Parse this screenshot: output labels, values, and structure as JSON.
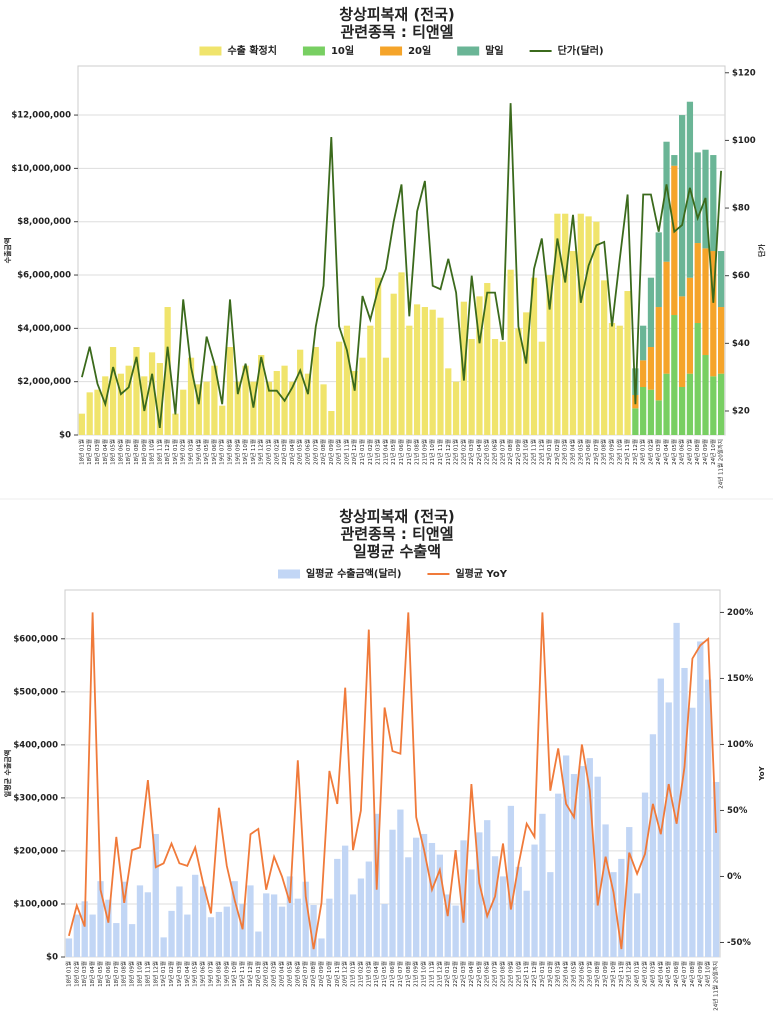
{
  "chart_data": [
    {
      "type": "bar",
      "stacked": true,
      "title": [
        "창상피복재 (전국)",
        "관련종목 : 티앤엘"
      ],
      "y_label": "수출금액",
      "y2_label": "단가",
      "categories": [
        "18년 01월",
        "18년 02월",
        "18년 03월",
        "18년 04월",
        "18년 05월",
        "18년 06월",
        "18년 07월",
        "18년 08월",
        "18년 09월",
        "18년 10월",
        "18년 11월",
        "18년 12월",
        "19년 01월",
        "19년 02월",
        "19년 03월",
        "19년 04월",
        "19년 05월",
        "19년 06월",
        "19년 07월",
        "19년 08월",
        "19년 09월",
        "19년 10월",
        "19년 11월",
        "19년 12월",
        "20년 01월",
        "20년 02월",
        "20년 03월",
        "20년 04월",
        "20년 05월",
        "20년 06월",
        "20년 07월",
        "20년 08월",
        "20년 09월",
        "20년 10월",
        "20년 11월",
        "20년 12월",
        "21년 01월",
        "21년 02월",
        "21년 03월",
        "21년 04월",
        "21년 05월",
        "21년 06월",
        "21년 07월",
        "21년 08월",
        "21년 09월",
        "21년 10월",
        "21년 11월",
        "21년 12월",
        "22년 01월",
        "22년 02월",
        "22년 03월",
        "22년 04월",
        "22년 05월",
        "22년 06월",
        "22년 07월",
        "22년 08월",
        "22년 09월",
        "22년 10월",
        "22년 11월",
        "22년 12월",
        "23년 01월",
        "23년 02월",
        "23년 03월",
        "23년 04월",
        "23년 05월",
        "23년 06월",
        "23년 07월",
        "23년 08월",
        "23년 09월",
        "23년 10월",
        "23년 11월",
        "23년 12월",
        "24년 01월",
        "24년 02월",
        "24년 03월",
        "24년 04월",
        "24년 05월",
        "24년 06월",
        "24년 07월",
        "24년 08월",
        "24년 09월",
        "24년 10월",
        "24년 11월 20일까지"
      ],
      "series": [
        {
          "name": "수출 확정치",
          "color": "#f0e46c",
          "type": "bar",
          "values": [
            800000,
            1600000,
            1700000,
            2200000,
            3300000,
            2300000,
            2600000,
            3300000,
            2200000,
            3100000,
            2700000,
            4800000,
            800000,
            1700000,
            2900000,
            1900000,
            2000000,
            2600000,
            1100000,
            3300000,
            2000000,
            2600000,
            2000000,
            3000000,
            2000000,
            2400000,
            2600000,
            2000000,
            3200000,
            2300000,
            3300000,
            1900000,
            900000,
            3500000,
            4100000,
            2400000,
            2900000,
            4100000,
            5900000,
            2900000,
            5300000,
            6100000,
            4100000,
            4900000,
            4800000,
            4700000,
            4400000,
            2500000,
            2000000,
            5000000,
            3600000,
            5200000,
            5700000,
            3600000,
            3500000,
            6200000,
            4000000,
            4600000,
            5900000,
            3500000,
            6000000,
            8300000,
            8300000,
            6900000,
            8300000,
            8200000,
            8000000,
            5800000,
            4200000,
            4100000,
            5400000,
            null,
            null,
            null,
            null,
            null,
            null,
            null,
            null,
            null,
            null,
            null,
            null
          ]
        },
        {
          "name": "10일",
          "color": "#78cf62",
          "type": "bar",
          "values": [
            null,
            null,
            null,
            null,
            null,
            null,
            null,
            null,
            null,
            null,
            null,
            null,
            null,
            null,
            null,
            null,
            null,
            null,
            null,
            null,
            null,
            null,
            null,
            null,
            null,
            null,
            null,
            null,
            null,
            null,
            null,
            null,
            null,
            null,
            null,
            null,
            null,
            null,
            null,
            null,
            null,
            null,
            null,
            null,
            null,
            null,
            null,
            null,
            null,
            null,
            null,
            null,
            null,
            null,
            null,
            null,
            null,
            null,
            null,
            null,
            null,
            null,
            null,
            null,
            null,
            null,
            null,
            null,
            null,
            null,
            null,
            1000000,
            1800000,
            1700000,
            1300000,
            2300000,
            4500000,
            1800000,
            2300000,
            4200000,
            3000000,
            2200000,
            2300000
          ]
        },
        {
          "name": "20일",
          "color": "#f5a42a",
          "type": "bar",
          "values": [
            null,
            null,
            null,
            null,
            null,
            null,
            null,
            null,
            null,
            null,
            null,
            null,
            null,
            null,
            null,
            null,
            null,
            null,
            null,
            null,
            null,
            null,
            null,
            null,
            null,
            null,
            null,
            null,
            null,
            null,
            null,
            null,
            null,
            null,
            null,
            null,
            null,
            null,
            null,
            null,
            null,
            null,
            null,
            null,
            null,
            null,
            null,
            null,
            null,
            null,
            null,
            null,
            null,
            null,
            null,
            null,
            null,
            null,
            null,
            null,
            null,
            null,
            null,
            null,
            null,
            null,
            null,
            null,
            null,
            null,
            null,
            500000,
            1000000,
            1600000,
            3500000,
            4200000,
            5600000,
            3400000,
            3600000,
            3000000,
            4000000,
            4700000,
            2500000
          ]
        },
        {
          "name": "말일",
          "color": "#6ab596",
          "type": "bar",
          "values": [
            null,
            null,
            null,
            null,
            null,
            null,
            null,
            null,
            null,
            null,
            null,
            null,
            null,
            null,
            null,
            null,
            null,
            null,
            null,
            null,
            null,
            null,
            null,
            null,
            null,
            null,
            null,
            null,
            null,
            null,
            null,
            null,
            null,
            null,
            null,
            null,
            null,
            null,
            null,
            null,
            null,
            null,
            null,
            null,
            null,
            null,
            null,
            null,
            null,
            null,
            null,
            null,
            null,
            null,
            null,
            null,
            null,
            null,
            null,
            null,
            null,
            null,
            null,
            null,
            null,
            null,
            null,
            null,
            null,
            null,
            null,
            1000000,
            1300000,
            2600000,
            2800000,
            4500000,
            400000,
            6800000,
            6600000,
            3400000,
            3700000,
            3600000,
            2100000
          ]
        },
        {
          "name": "단가(달러)",
          "color": "#3b6a1c",
          "type": "line",
          "axis": "y2",
          "values": [
            30,
            39,
            28,
            22,
            33,
            25,
            27,
            36,
            20,
            31,
            15,
            39,
            19,
            53,
            33,
            22,
            42,
            34,
            22,
            53,
            25,
            34,
            21,
            36,
            26,
            26,
            23,
            27,
            32,
            25,
            45,
            57,
            101,
            45,
            38,
            26,
            54,
            47,
            56,
            62,
            76,
            87,
            48,
            79,
            88,
            57,
            56,
            65,
            55,
            29,
            60,
            40,
            55,
            55,
            41,
            111,
            45,
            34,
            62,
            71,
            50,
            71,
            58,
            78,
            52,
            63,
            69,
            70,
            45,
            65,
            84,
            22,
            84,
            84,
            73,
            87,
            73,
            75,
            86,
            77,
            83,
            52,
            91
          ]
        }
      ],
      "ylim": [
        0,
        13840000
      ],
      "yticks": [
        {
          "value": 0,
          "label": "$0"
        },
        {
          "value": 2000000,
          "label": "$2,000,000"
        },
        {
          "value": 4000000,
          "label": "$4,000,000"
        },
        {
          "value": 6000000,
          "label": "$6,000,000"
        },
        {
          "value": 8000000,
          "label": "$8,000,000"
        },
        {
          "value": 10000000,
          "label": "$10,000,000"
        },
        {
          "value": 12000000,
          "label": "$12,000,000"
        }
      ],
      "y2lim": [
        12.9,
        122
      ],
      "y2ticks": [
        {
          "value": 20,
          "label": "$20"
        },
        {
          "value": 40,
          "label": "$40"
        },
        {
          "value": 60,
          "label": "$60"
        },
        {
          "value": 80,
          "label": "$80"
        },
        {
          "value": 100,
          "label": "$100"
        },
        {
          "value": 120,
          "label": "$120"
        }
      ],
      "grid": true,
      "legend": "top"
    },
    {
      "type": "bar",
      "stacked": false,
      "title": [
        "창상피복재 (전국)",
        "관련종목 : 티앤엘",
        "일평균 수출액"
      ],
      "y_label": "일평균 수출금액",
      "y2_label": "YoY",
      "categories": [
        "18년 01월",
        "18년 02월",
        "18년 03월",
        "18년 04월",
        "18년 05월",
        "18년 06월",
        "18년 07월",
        "18년 08월",
        "18년 09월",
        "18년 10월",
        "18년 11월",
        "18년 12월",
        "19년 01월",
        "19년 02월",
        "19년 03월",
        "19년 04월",
        "19년 05월",
        "19년 06월",
        "19년 07월",
        "19년 08월",
        "19년 09월",
        "19년 10월",
        "19년 11월",
        "19년 12월",
        "20년 01월",
        "20년 02월",
        "20년 03월",
        "20년 04월",
        "20년 05월",
        "20년 06월",
        "20년 07월",
        "20년 08월",
        "20년 09월",
        "20년 10월",
        "20년 11월",
        "20년 12월",
        "21년 01월",
        "21년 02월",
        "21년 03월",
        "21년 04월",
        "21년 05월",
        "21년 06월",
        "21년 07월",
        "21년 08월",
        "21년 09월",
        "21년 10월",
        "21년 11월",
        "21년 12월",
        "22년 01월",
        "22년 02월",
        "22년 03월",
        "22년 04월",
        "22년 05월",
        "22년 06월",
        "22년 07월",
        "22년 08월",
        "22년 09월",
        "22년 10월",
        "22년 11월",
        "22년 12월",
        "23년 01월",
        "23년 02월",
        "23년 03월",
        "23년 04월",
        "23년 05월",
        "23년 06월",
        "23년 07월",
        "23년 08월",
        "23년 09월",
        "23년 10월",
        "23년 11월",
        "23년 12월",
        "24년 01월",
        "24년 02월",
        "24년 03월",
        "24년 04월",
        "24년 05월",
        "24년 06월",
        "24년 07월",
        "24년 08월",
        "24년 09월",
        "24년 10월",
        "24년 11월 20일까지"
      ],
      "series": [
        {
          "name": "일평균 수출금액(달러)",
          "color": "#c2d6f5",
          "type": "bar",
          "values": [
            35000,
            80000,
            105000,
            80000,
            143000,
            108000,
            64000,
            142000,
            62000,
            135000,
            122000,
            232000,
            37000,
            87000,
            133000,
            80000,
            155000,
            133000,
            75000,
            85000,
            95000,
            143000,
            100000,
            135000,
            48000,
            120000,
            118000,
            95000,
            152000,
            110000,
            142000,
            98000,
            35000,
            110000,
            185000,
            210000,
            118000,
            148000,
            180000,
            270000,
            100000,
            240000,
            278000,
            188000,
            225000,
            232000,
            215000,
            193000,
            118000,
            97000,
            220000,
            165000,
            235000,
            258000,
            190000,
            152000,
            285000,
            170000,
            125000,
            212000,
            270000,
            160000,
            308000,
            380000,
            345000,
            360000,
            375000,
            340000,
            250000,
            160000,
            185000,
            245000,
            120000,
            310000,
            420000,
            525000,
            480000,
            630000,
            545000,
            470000,
            595000,
            523000,
            330000
          ]
        },
        {
          "name": "일평균 YoY",
          "color": "#f07a3a",
          "type": "line",
          "axis": "y2",
          "values": [
            -45,
            -22,
            -38,
            200,
            -10,
            -35,
            30,
            -20,
            20,
            22,
            73,
            7,
            10,
            25,
            10,
            8,
            22,
            -5,
            -28,
            52,
            8,
            -18,
            -40,
            32,
            36,
            -10,
            15,
            0,
            -20,
            88,
            -15,
            -55,
            -20,
            80,
            55,
            143,
            20,
            50,
            187,
            -10,
            128,
            95,
            93,
            200,
            45,
            20,
            -10,
            5,
            -30,
            20,
            -35,
            70,
            -5,
            -30,
            -15,
            25,
            -25,
            10,
            40,
            30,
            200,
            65,
            97,
            55,
            45,
            100,
            65,
            -22,
            15,
            -12,
            -55,
            18,
            2,
            17,
            55,
            32,
            70,
            40,
            83,
            165,
            175,
            180,
            33
          ]
        }
      ],
      "ylim": [
        0,
        692000
      ],
      "yticks": [
        {
          "value": 0,
          "label": "$0"
        },
        {
          "value": 100000,
          "label": "$100,000"
        },
        {
          "value": 200000,
          "label": "$200,000"
        },
        {
          "value": 300000,
          "label": "$300,000"
        },
        {
          "value": 400000,
          "label": "$400,000"
        },
        {
          "value": 500000,
          "label": "$500,000"
        },
        {
          "value": 600000,
          "label": "$600,000"
        }
      ],
      "y2lim": [
        -61,
        217
      ],
      "y2ticks": [
        {
          "value": -50,
          "label": "-50%"
        },
        {
          "value": 0,
          "label": "0%"
        },
        {
          "value": 50,
          "label": "50%"
        },
        {
          "value": 100,
          "label": "100%"
        },
        {
          "value": 150,
          "label": "150%"
        },
        {
          "value": 200,
          "label": "200%"
        }
      ],
      "grid": true,
      "legend": "top"
    }
  ]
}
